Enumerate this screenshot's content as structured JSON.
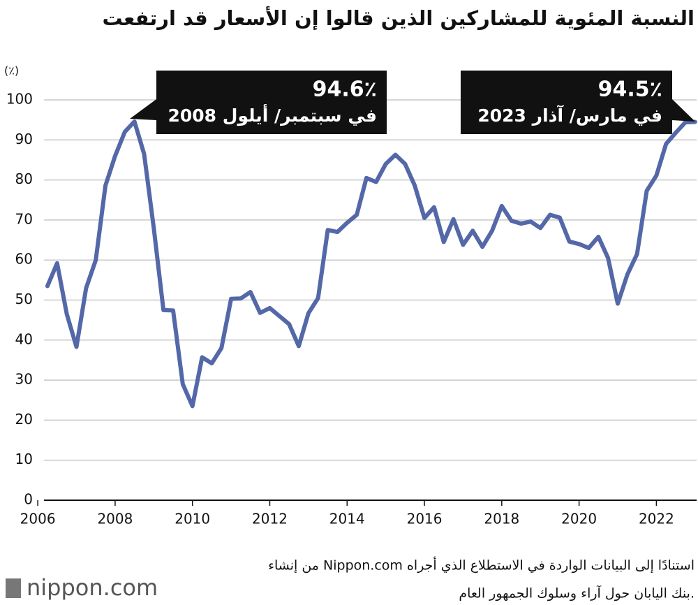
{
  "chart_data": {
    "type": "line",
    "title": "النسبة المئوية للمشاركين الذين قالوا إن الأسعار قد ارتفعت",
    "y_label": "(٪)",
    "x": [
      2006.25,
      2006.5,
      2006.75,
      2007,
      2007.25,
      2007.5,
      2007.75,
      2008,
      2008.25,
      2008.5,
      2008.75,
      2009,
      2009.25,
      2009.5,
      2009.75,
      2010,
      2010.25,
      2010.5,
      2010.75,
      2011,
      2011.25,
      2011.5,
      2011.75,
      2012,
      2012.25,
      2012.5,
      2012.75,
      2013,
      2013.25,
      2013.5,
      2013.75,
      2014,
      2014.25,
      2014.5,
      2014.75,
      2015,
      2015.25,
      2015.5,
      2015.75,
      2016,
      2016.25,
      2016.5,
      2016.75,
      2017,
      2017.25,
      2017.5,
      2017.75,
      2018,
      2018.25,
      2018.5,
      2018.75,
      2019,
      2019.25,
      2019.5,
      2019.75,
      2020,
      2020.25,
      2020.5,
      2020.75,
      2021,
      2021.25,
      2021.5,
      2021.75,
      2022,
      2022.25,
      2022.5,
      2022.75,
      2023
    ],
    "series": [
      {
        "color": "#5468a8",
        "values": [
          53.5,
          59.2,
          46.5,
          38.3,
          53,
          60,
          78.6,
          86,
          92,
          94.6,
          86.5,
          68,
          47.5,
          47.4,
          29,
          23.5,
          35.7,
          34.2,
          38,
          50.3,
          50.4,
          52,
          46.8,
          48,
          46,
          44,
          38.5,
          46.7,
          50.5,
          67.5,
          67,
          69.3,
          71.3,
          80.5,
          79.5,
          84,
          86.3,
          84,
          78.6,
          70.5,
          73.2,
          64.5,
          70.2,
          63.8,
          67.3,
          63.3,
          67.3,
          73.5,
          69.8,
          69.1,
          69.6,
          68,
          71.3,
          70.6,
          64.6,
          64,
          63,
          65.8,
          60.5,
          49.1,
          56.4,
          61.5,
          77.3,
          81.1,
          89,
          91.8,
          94.4,
          94.5
        ]
      }
    ],
    "xlim": [
      2006.16,
      2023.04
    ],
    "xticks": [
      2006,
      2008,
      2010,
      2012,
      2014,
      2016,
      2018,
      2020,
      2022
    ],
    "ylim": [
      0,
      100
    ],
    "yticks": [
      0,
      10,
      20,
      30,
      40,
      50,
      60,
      70,
      80,
      90,
      100
    ],
    "grid": true,
    "annotations": [
      {
        "value_label": "94.6٪",
        "text": "في سبتمبر/ أيلول 2008"
      },
      {
        "value_label": "94.5٪",
        "text": "في مارس/ آذار 2023"
      }
    ],
    "source": [
      "من إنشاء Nippon.com استنادًا إلى البيانات الواردة في الاستطلاع الذي أجراه",
      "بنك اليابان حول آراء وسلوك الجمهور العام."
    ],
    "logo": "nippon.com"
  }
}
